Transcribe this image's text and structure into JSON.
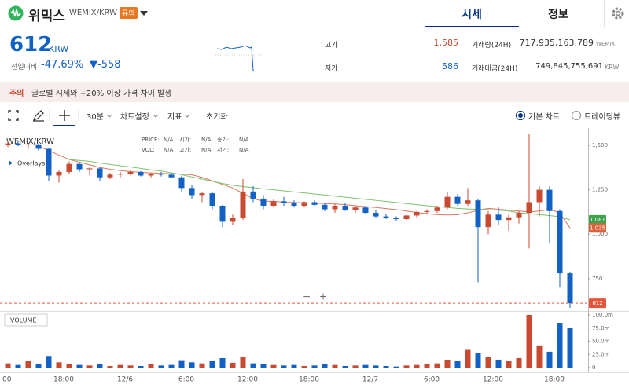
{
  "header": {
    "coin_name": "위믹스",
    "pair": "WEMIX/KRW",
    "badge": "유의",
    "tabs": [
      "시세",
      "정보"
    ]
  },
  "price": {
    "value": "612",
    "unit": "KRW",
    "change_label": "전일대비",
    "change_rate": "-47.69%",
    "change_amount": "▼-558",
    "high_label": "고가",
    "high": "1,585",
    "low_label": "저가",
    "low": "586",
    "volume_label": "거래량(24H)",
    "volume": "717,935,163.789",
    "volume_unit": "WEMIX",
    "turnover_label": "거래대금(24H)",
    "turnover": "749,845,755,691",
    "turnover_unit": "KRW"
  },
  "notice": {
    "label": "주의",
    "text": "글로벌 시세와 +20% 이상 가격 차이 발생"
  },
  "toolbar": {
    "interval": "30분",
    "settings": "차트설정",
    "indicators": "지표",
    "reset": "초기화",
    "chart_types": [
      "기본 차트",
      "트레이딩뷰"
    ]
  },
  "chart_data": {
    "type": "candlestick",
    "symbol": "WEMIX/KRW",
    "overlays_label": "Overlays",
    "volume_label": "VOLUME",
    "zoom": [
      "−",
      "+"
    ],
    "info": [
      [
        [
          "PRICE:",
          "N/A"
        ],
        [
          "시가:",
          "N/A"
        ],
        [
          "종가:",
          "N/A"
        ]
      ],
      [
        [
          "VOL:",
          "N/A"
        ],
        [
          "고가:",
          "N/A"
        ],
        [
          "저가:",
          "N/A"
        ]
      ]
    ],
    "up_color": "#c84a31",
    "down_color": "#1261c4",
    "ylim": [
      573,
      1588
    ],
    "yticks": [
      {
        "value": 1500,
        "label": "1,500"
      },
      {
        "value": 1250,
        "label": "1,250"
      },
      {
        "value": 1000,
        "label": "1,000"
      },
      750
    ],
    "vlim": [
      0,
      106000000
    ],
    "vticks": [
      {
        "value": 100000000,
        "label": "100.0m"
      },
      {
        "value": 75000000,
        "label": "75.0m"
      },
      {
        "value": 50000000,
        "label": "50.0m"
      },
      {
        "value": 25000000,
        "label": "25.0m"
      },
      0
    ],
    "x_labels": [
      "00",
      "18:00",
      "12/6",
      "6:00",
      "12:00",
      "18:00",
      "12/7",
      "6:00",
      "12:00",
      "18:00"
    ],
    "candles": [
      {
        "open": 1500,
        "high": 1520,
        "low": 1490,
        "close": 1510
      },
      {
        "open": 1510,
        "high": 1525,
        "low": 1495,
        "close": 1500
      },
      {
        "open": 1500,
        "high": 1515,
        "low": 1480,
        "close": 1505
      },
      {
        "open": 1505,
        "high": 1510,
        "low": 1470,
        "close": 1480
      },
      {
        "open": 1480,
        "high": 1485,
        "low": 1300,
        "close": 1330
      },
      {
        "open": 1330,
        "high": 1360,
        "low": 1290,
        "close": 1350
      },
      {
        "open": 1350,
        "high": 1410,
        "low": 1340,
        "close": 1395
      },
      {
        "open": 1395,
        "high": 1400,
        "low": 1350,
        "close": 1365
      },
      {
        "open": 1365,
        "high": 1380,
        "low": 1330,
        "close": 1370
      },
      {
        "open": 1370,
        "high": 1375,
        "low": 1300,
        "close": 1320
      },
      {
        "open": 1320,
        "high": 1345,
        "low": 1310,
        "close": 1335
      },
      {
        "open": 1335,
        "high": 1350,
        "low": 1320,
        "close": 1340
      },
      {
        "open": 1340,
        "high": 1360,
        "low": 1330,
        "close": 1350
      },
      {
        "open": 1350,
        "high": 1355,
        "low": 1325,
        "close": 1330
      },
      {
        "open": 1330,
        "high": 1345,
        "low": 1320,
        "close": 1340
      },
      {
        "open": 1340,
        "high": 1350,
        "low": 1325,
        "close": 1335
      },
      {
        "open": 1335,
        "high": 1345,
        "low": 1315,
        "close": 1320
      },
      {
        "open": 1320,
        "high": 1330,
        "low": 1240,
        "close": 1260
      },
      {
        "open": 1260,
        "high": 1275,
        "low": 1200,
        "close": 1220
      },
      {
        "open": 1220,
        "high": 1240,
        "low": 1180,
        "close": 1230
      },
      {
        "open": 1230,
        "high": 1240,
        "low": 1140,
        "close": 1160
      },
      {
        "open": 1160,
        "high": 1165,
        "low": 1040,
        "close": 1070
      },
      {
        "open": 1070,
        "high": 1110,
        "low": 1050,
        "close": 1090
      },
      {
        "open": 1090,
        "high": 1310,
        "low": 1080,
        "close": 1240
      },
      {
        "open": 1240,
        "high": 1270,
        "low": 1180,
        "close": 1200
      },
      {
        "open": 1200,
        "high": 1220,
        "low": 1140,
        "close": 1160
      },
      {
        "open": 1160,
        "high": 1195,
        "low": 1150,
        "close": 1185
      },
      {
        "open": 1185,
        "high": 1210,
        "low": 1160,
        "close": 1175
      },
      {
        "open": 1175,
        "high": 1190,
        "low": 1150,
        "close": 1160
      },
      {
        "open": 1160,
        "high": 1185,
        "low": 1150,
        "close": 1180
      },
      {
        "open": 1180,
        "high": 1190,
        "low": 1160,
        "close": 1165
      },
      {
        "open": 1165,
        "high": 1175,
        "low": 1130,
        "close": 1140
      },
      {
        "open": 1140,
        "high": 1170,
        "low": 1120,
        "close": 1160
      },
      {
        "open": 1160,
        "high": 1175,
        "low": 1130,
        "close": 1135
      },
      {
        "open": 1135,
        "high": 1160,
        "low": 1120,
        "close": 1150
      },
      {
        "open": 1150,
        "high": 1160,
        "low": 1115,
        "close": 1120
      },
      {
        "open": 1120,
        "high": 1135,
        "low": 1095,
        "close": 1100
      },
      {
        "open": 1100,
        "high": 1115,
        "low": 1085,
        "close": 1090
      },
      {
        "open": 1090,
        "high": 1100,
        "low": 1075,
        "close": 1085
      },
      {
        "open": 1085,
        "high": 1110,
        "low": 1080,
        "close": 1105
      },
      {
        "open": 1105,
        "high": 1130,
        "low": 1095,
        "close": 1125
      },
      {
        "open": 1125,
        "high": 1140,
        "low": 1110,
        "close": 1130
      },
      {
        "open": 1130,
        "high": 1160,
        "low": 1120,
        "close": 1150
      },
      {
        "open": 1150,
        "high": 1240,
        "low": 1140,
        "close": 1210
      },
      {
        "open": 1210,
        "high": 1225,
        "low": 1160,
        "close": 1170
      },
      {
        "open": 1170,
        "high": 1260,
        "low": 1160,
        "close": 1190
      },
      {
        "open": 1190,
        "high": 1200,
        "low": 730,
        "close": 1040
      },
      {
        "open": 1040,
        "high": 1130,
        "low": 1000,
        "close": 1110
      },
      {
        "open": 1110,
        "high": 1150,
        "low": 1050,
        "close": 1080
      },
      {
        "open": 1080,
        "high": 1110,
        "low": 1020,
        "close": 1095
      },
      {
        "open": 1095,
        "high": 1130,
        "low": 1060,
        "close": 1120
      },
      {
        "open": 1120,
        "high": 1565,
        "low": 920,
        "close": 1180
      },
      {
        "open": 1180,
        "high": 1270,
        "low": 1100,
        "close": 1250
      },
      {
        "open": 1250,
        "high": 1270,
        "low": 950,
        "close": 1130
      },
      {
        "open": 1130,
        "high": 1140,
        "low": 700,
        "close": 780
      },
      {
        "open": 780,
        "high": 790,
        "low": 586,
        "close": 612
      }
    ],
    "volumes": [
      8000000,
      5000000,
      12000000,
      6000000,
      22000000,
      10000000,
      7000000,
      5000000,
      4000000,
      6000000,
      3000000,
      5000000,
      4000000,
      3000000,
      6000000,
      4000000,
      5000000,
      14000000,
      10000000,
      8000000,
      12000000,
      18000000,
      9000000,
      20000000,
      8000000,
      6000000,
      5000000,
      4000000,
      5000000,
      3000000,
      4000000,
      6000000,
      5000000,
      3000000,
      4000000,
      5000000,
      4000000,
      3000000,
      2000000,
      4000000,
      5000000,
      6000000,
      8000000,
      15000000,
      12000000,
      35000000,
      28000000,
      20000000,
      15000000,
      12000000,
      18000000,
      100000000,
      42000000,
      30000000,
      85000000,
      75000000
    ],
    "overlays": [
      {
        "color": "#d9785f",
        "values": [
          null,
          null,
          null,
          1495,
          1470,
          1445,
          1420,
          1405,
          1390,
          1375,
          1365,
          1358,
          1352,
          1348,
          1345,
          1342,
          1340,
          1338,
          1334,
          1320,
          1300,
          1280,
          1260,
          1230,
          1200,
          1185,
          1185,
          1180,
          1178,
          1176,
          1175,
          1172,
          1170,
          1166,
          1160,
          1155,
          1150,
          1144,
          1138,
          1130,
          1122,
          1115,
          1110,
          1108,
          1110,
          1120,
          1135,
          1145,
          1140,
          1135,
          1130,
          1125,
          1130,
          1140,
          1120,
          1035
        ]
      },
      {
        "color": "#7cc46a",
        "values": [
          null,
          null,
          null,
          null,
          null,
          null,
          1420,
          1415,
          1410,
          1400,
          1392,
          1385,
          1378,
          1370,
          1362,
          1355,
          1345,
          1335,
          1322,
          1310,
          1298,
          1285,
          1275,
          1268,
          1262,
          1255,
          1250,
          1244,
          1238,
          1232,
          1226,
          1220,
          1214,
          1208,
          1202,
          1196,
          1190,
          1184,
          1178,
          1172,
          1166,
          1160,
          1155,
          1150,
          1145,
          1142,
          1140,
          1138,
          1135,
          1130,
          1120,
          1115,
          1110,
          1105,
          1098,
          1081
        ]
      }
    ],
    "markers": [
      {
        "value": 1081,
        "label": "1,081",
        "color": "#3fa34d"
      },
      {
        "value": 1035,
        "label": "1,035",
        "color": "#d8633c"
      },
      {
        "value": 612,
        "color": "#e6553a"
      }
    ]
  }
}
